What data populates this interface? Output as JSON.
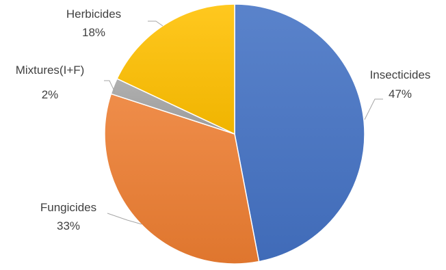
{
  "chart_data": {
    "type": "pie",
    "title": "",
    "slices": [
      {
        "label": "Insecticides",
        "pct_label": "47%",
        "value": 47,
        "color": "#4472c4"
      },
      {
        "label": "Fungicides",
        "pct_label": "33%",
        "value": 33,
        "color": "#ed7d31"
      },
      {
        "label": "Mixtures(I+F)",
        "pct_label": "2%",
        "value": 2,
        "color": "#a5a5a5"
      },
      {
        "label": "Herbicides",
        "pct_label": "18%",
        "value": 18,
        "color": "#ffc000"
      }
    ],
    "start": "12 o'clock",
    "direction": "clockwise",
    "legend": "none",
    "data_labels": "outside-with-leader-lines"
  }
}
